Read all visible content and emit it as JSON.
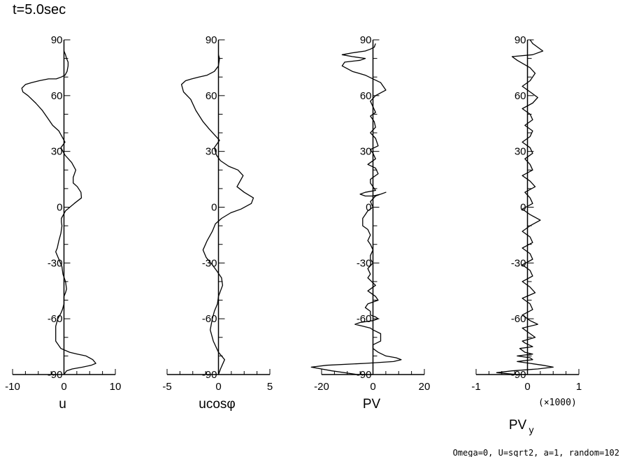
{
  "header": {
    "time_label": "t=5.0sec"
  },
  "footer": {
    "params": "Omega=0, U=sqrt2, a=1, random=102"
  },
  "chart_data": [
    {
      "type": "line",
      "xlabel": "u",
      "xlim": [
        -10,
        10
      ],
      "ylim": [
        -90,
        90
      ],
      "xticks": [
        "-10",
        "0",
        "10"
      ],
      "yticks": [
        "90",
        "60",
        "30",
        "0",
        "-30",
        "-60",
        "-90"
      ],
      "multiplier": "",
      "series": [
        {
          "x": [
            0,
            0.3,
            0.5,
            0.8,
            0.8,
            0.6,
            0.2,
            -0.5,
            -1.5,
            -3.0,
            -4.8,
            -6.3,
            -7.5,
            -8.2,
            -8.0,
            -7.0,
            -5.5,
            -4.2,
            -3.2,
            -2.2,
            -1.0,
            -0.4,
            0.2,
            -0.6,
            0.2,
            1.5,
            2.3,
            1.8,
            1.8,
            2.6,
            3.3,
            3.4,
            2.0,
            0.3,
            -0.5,
            -0.5,
            -0.4,
            -0.6,
            -1.0,
            -1.3,
            -1.6,
            -1.0,
            -0.4,
            -0.2,
            0.3,
            0.5,
            0.3,
            0.0,
            0.0,
            -0.3,
            -0.6,
            -1.2,
            -1.6,
            -1.6,
            -1.6,
            -0.6,
            1.1,
            2.6,
            4.3,
            5.6,
            6.2,
            5.3,
            3.6,
            1.6,
            0.5,
            0.0
          ],
          "y": [
            84,
            82,
            80,
            78,
            76,
            73,
            71,
            70,
            69,
            69,
            68,
            67,
            66,
            64,
            62,
            60,
            56,
            52,
            48,
            44,
            41,
            38,
            35,
            32,
            28,
            24,
            20,
            16,
            13,
            11,
            8,
            5,
            2,
            -2,
            -6,
            -8,
            -10,
            -14,
            -18,
            -22,
            -24,
            -28,
            -32,
            -36,
            -40,
            -44,
            -46,
            -48,
            -52,
            -55,
            -57,
            -60,
            -64,
            -68,
            -72,
            -76,
            -78,
            -79,
            -80,
            -82,
            -84,
            -85,
            -86,
            -87,
            -88,
            -90
          ]
        }
      ]
    },
    {
      "type": "line",
      "xlabel": "ucosφ",
      "xlim": [
        -5,
        5
      ],
      "ylim": [
        -90,
        90
      ],
      "xticks": [
        "-5",
        "0",
        "5"
      ],
      "yticks": [
        "90",
        "60",
        "30",
        "0",
        "-30",
        "-60",
        "-90"
      ],
      "multiplier": "",
      "series": [
        {
          "x": [
            0,
            0.1,
            0,
            -0.4,
            -1.1,
            -1.9,
            -2.6,
            -3.2,
            -3.6,
            -3.4,
            -2.7,
            -2.2,
            -1.5,
            -0.9,
            -0.4,
            0.1,
            -0.4,
            -0.2,
            0.2,
            1.0,
            1.9,
            2.4,
            2.0,
            1.8,
            2.5,
            3.4,
            3.2,
            2.2,
            1.2,
            0.3,
            -0.3,
            -0.6,
            -1.1,
            -1.5,
            -1.2,
            -0.6,
            -0.2,
            0.3,
            0.4,
            0.2,
            0,
            -0.1,
            -0.4,
            -0.6,
            -0.8,
            -0.5,
            0,
            0.6,
            0.2,
            0
          ],
          "y": [
            82,
            80,
            76,
            73,
            71,
            70,
            69,
            68,
            66,
            62,
            58,
            52,
            46,
            42,
            39,
            36,
            32,
            28,
            25,
            22,
            20,
            17,
            13,
            11,
            8,
            5,
            2,
            -1,
            -3,
            -6,
            -9,
            -13,
            -18,
            -23,
            -27,
            -31,
            -34,
            -38,
            -42,
            -45,
            -48,
            -52,
            -56,
            -60,
            -66,
            -72,
            -78,
            -82,
            -87,
            -90
          ]
        }
      ]
    },
    {
      "type": "line",
      "xlabel": "PV",
      "xlim": [
        -20,
        20
      ],
      "ylim": [
        -90,
        90
      ],
      "xticks": [
        "-20",
        "0",
        "20"
      ],
      "yticks": [
        "90",
        "60",
        "30",
        "0",
        "-30",
        "-60",
        "-90"
      ],
      "multiplier": "",
      "series": [
        {
          "x": [
            1,
            0.5,
            -1,
            -3,
            -8,
            -12,
            -8,
            -3,
            -5,
            -11,
            -12,
            -8,
            -3,
            0,
            3,
            5,
            1,
            -1,
            0,
            1,
            -1,
            0.5,
            1,
            -1,
            1,
            2,
            -1,
            0,
            1,
            -2,
            1,
            2,
            -1,
            -1,
            0,
            1,
            -3,
            -5,
            -3,
            0,
            3,
            5,
            1,
            -1,
            0,
            -2,
            -3,
            -4,
            -4,
            -2,
            -1,
            -2,
            -1,
            0,
            -1,
            -1,
            0,
            -2,
            -1,
            -2,
            1,
            -2,
            1,
            2,
            -2,
            -3,
            -1,
            -1,
            1,
            2,
            0,
            -5,
            -7,
            -4,
            -1,
            0,
            3,
            3,
            0,
            0,
            2,
            5,
            9,
            11,
            8,
            -3,
            -18,
            -24,
            -16,
            -6,
            0
          ],
          "y": [
            88,
            86,
            85,
            84,
            83,
            82,
            81,
            80,
            79,
            78,
            76,
            73,
            71,
            69,
            67,
            63,
            60,
            57,
            54,
            51,
            49,
            46,
            43,
            40,
            37,
            33,
            31,
            29,
            26,
            23,
            21,
            18,
            15,
            13,
            11,
            9,
            8,
            7,
            6,
            6,
            7,
            8,
            6,
            3,
            0,
            -2,
            -4,
            -6,
            -10,
            -12,
            -15,
            -18,
            -20,
            -23,
            -26,
            -28,
            -30,
            -33,
            -36,
            -38,
            -42,
            -45,
            -48,
            -50,
            -52,
            -54,
            -56,
            -58,
            -59,
            -60,
            -61,
            -62,
            -63,
            -64,
            -65,
            -66,
            -68,
            -72,
            -74,
            -76,
            -78,
            -80,
            -81,
            -82,
            -83,
            -84,
            -85,
            -86,
            -88,
            -90,
            -90
          ]
        }
      ]
    },
    {
      "type": "line",
      "xlabel": "PV",
      "xlabel_sub": "y",
      "xlim": [
        -1,
        1
      ],
      "ylim": [
        -90,
        90
      ],
      "xticks": [
        "-1",
        "0",
        "1"
      ],
      "yticks": [
        "90",
        "60",
        "30",
        "0",
        "-30",
        "-60",
        "-90"
      ],
      "multiplier": "(×1000)",
      "series": [
        {
          "x": [
            0.05,
            0.1,
            0.3,
            0.1,
            -0.3,
            -0.2,
            0.05,
            0.15,
            0.05,
            -0.1,
            0.05,
            0.2,
            0.1,
            -0.1,
            0.05,
            0.1,
            -0.05,
            0.1,
            0.05,
            -0.1,
            0.05,
            0.1,
            -0.05,
            0.05,
            0.1,
            -0.1,
            0.05,
            0.15,
            -0.05,
            0.05,
            0.1,
            -0.1,
            0.05,
            0.25,
            0.05,
            -0.1,
            0.05,
            0.1,
            -0.1,
            0.05,
            0.1,
            -0.1,
            0.05,
            0.1,
            -0.1,
            0.05,
            0.15,
            -0.1,
            0.05,
            0.1,
            -0.1,
            0.05,
            0.2,
            -0.1,
            0.05,
            0.15,
            -0.1,
            -0.05,
            0.1,
            -0.15,
            -0.05,
            0.1,
            -0.2,
            0.05,
            0.1,
            -0.2,
            0.05,
            0.3,
            0.5,
            0.2,
            -0.3,
            -0.6,
            -0.2,
            0
          ],
          "y": [
            90,
            88,
            84,
            82,
            81,
            79,
            75,
            72,
            68,
            65,
            62,
            59,
            56,
            53,
            50,
            47,
            44,
            41,
            38,
            35,
            32,
            29,
            26,
            23,
            20,
            17,
            14,
            11,
            8,
            5,
            2,
            -1,
            -4,
            -7,
            -10,
            -13,
            -16,
            -19,
            -22,
            -25,
            -28,
            -31,
            -34,
            -37,
            -40,
            -43,
            -46,
            -49,
            -52,
            -55,
            -58,
            -61,
            -63,
            -65,
            -68,
            -70,
            -72,
            -73,
            -75,
            -76,
            -78,
            -79,
            -80,
            -81,
            -82,
            -83,
            -84,
            -85,
            -86,
            -87,
            -88,
            -89,
            -90,
            -90
          ]
        }
      ]
    }
  ]
}
